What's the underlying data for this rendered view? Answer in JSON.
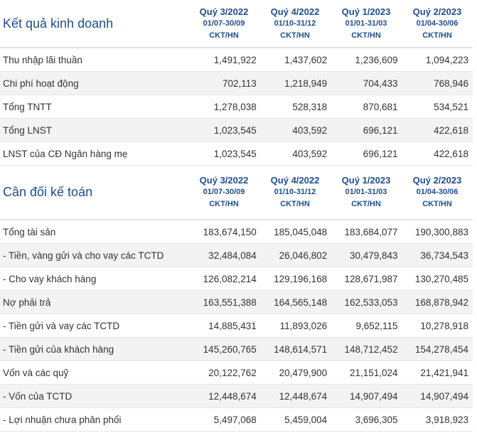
{
  "income": {
    "title": "Kết quả kinh doanh",
    "columns": [
      {
        "quarter": "Quý 3/2022",
        "dates": "01/07-30/09",
        "unit": "CKT/HN"
      },
      {
        "quarter": "Quý 4/2022",
        "dates": "01/10-31/12",
        "unit": "CKT/HN"
      },
      {
        "quarter": "Quý 1/2023",
        "dates": "01/01-31/03",
        "unit": "CKT/HN"
      },
      {
        "quarter": "Quý 2/2023",
        "dates": "01/04-30/06",
        "unit": "CKT/HN"
      }
    ],
    "rows": [
      {
        "label": "Thu nhập lãi thuần",
        "values": [
          "1,491,922",
          "1,437,602",
          "1,236,609",
          "1,094,223"
        ]
      },
      {
        "label": "Chi phí hoạt động",
        "values": [
          "702,113",
          "1,218,949",
          "704,433",
          "768,946"
        ]
      },
      {
        "label": "Tổng TNTT",
        "values": [
          "1,278,038",
          "528,318",
          "870,681",
          "534,521"
        ]
      },
      {
        "label": "Tổng LNST",
        "values": [
          "1,023,545",
          "403,592",
          "696,121",
          "422,618"
        ]
      },
      {
        "label": "LNST của CĐ Ngân hàng mẹ",
        "values": [
          "1,023,545",
          "403,592",
          "696,121",
          "422,618"
        ]
      }
    ]
  },
  "balance": {
    "title": "Cân đối kế toán",
    "columns": [
      {
        "quarter": "Quý 3/2022",
        "dates": "01/07-30/09",
        "unit": "CKT/HN"
      },
      {
        "quarter": "Quý 4/2022",
        "dates": "01/10-31/12",
        "unit": "CKT/HN"
      },
      {
        "quarter": "Quý 1/2023",
        "dates": "01/01-31/03",
        "unit": "CKT/HN"
      },
      {
        "quarter": "Quý 2/2023",
        "dates": "01/04-30/06",
        "unit": "CKT/HN"
      }
    ],
    "rows": [
      {
        "label": "Tổng tài sản",
        "values": [
          "183,674,150",
          "185,045,048",
          "183,684,077",
          "190,300,883"
        ]
      },
      {
        "label": "- Tiền, vàng gửi và cho vay các TCTD",
        "values": [
          "32,484,084",
          "26,046,802",
          "30,479,843",
          "36,734,543"
        ]
      },
      {
        "label": "- Cho vay khách hàng",
        "values": [
          "126,082,214",
          "129,196,168",
          "128,671,987",
          "130,270,485"
        ]
      },
      {
        "label": "Nợ phải trả",
        "values": [
          "163,551,388",
          "164,565,148",
          "162,533,053",
          "168,878,942"
        ]
      },
      {
        "label": "- Tiền gửi và vay các TCTD",
        "values": [
          "14,885,431",
          "11,893,026",
          "9,652,115",
          "10,278,918"
        ]
      },
      {
        "label": "- Tiền gửi của khách hàng",
        "values": [
          "145,260,765",
          "148,614,571",
          "148,712,452",
          "154,278,454"
        ]
      },
      {
        "label": "Vốn và các quỹ",
        "values": [
          "20,122,762",
          "20,479,900",
          "21,151,024",
          "21,421,941"
        ]
      },
      {
        "label": "- Vốn của TCTD",
        "values": [
          "12,448,674",
          "12,448,674",
          "14,907,494",
          "14,907,494"
        ]
      },
      {
        "label": "- Lợi nhuận chưa phân phối",
        "values": [
          "5,497,068",
          "5,459,004",
          "3,696,305",
          "3,918,923"
        ]
      }
    ]
  }
}
